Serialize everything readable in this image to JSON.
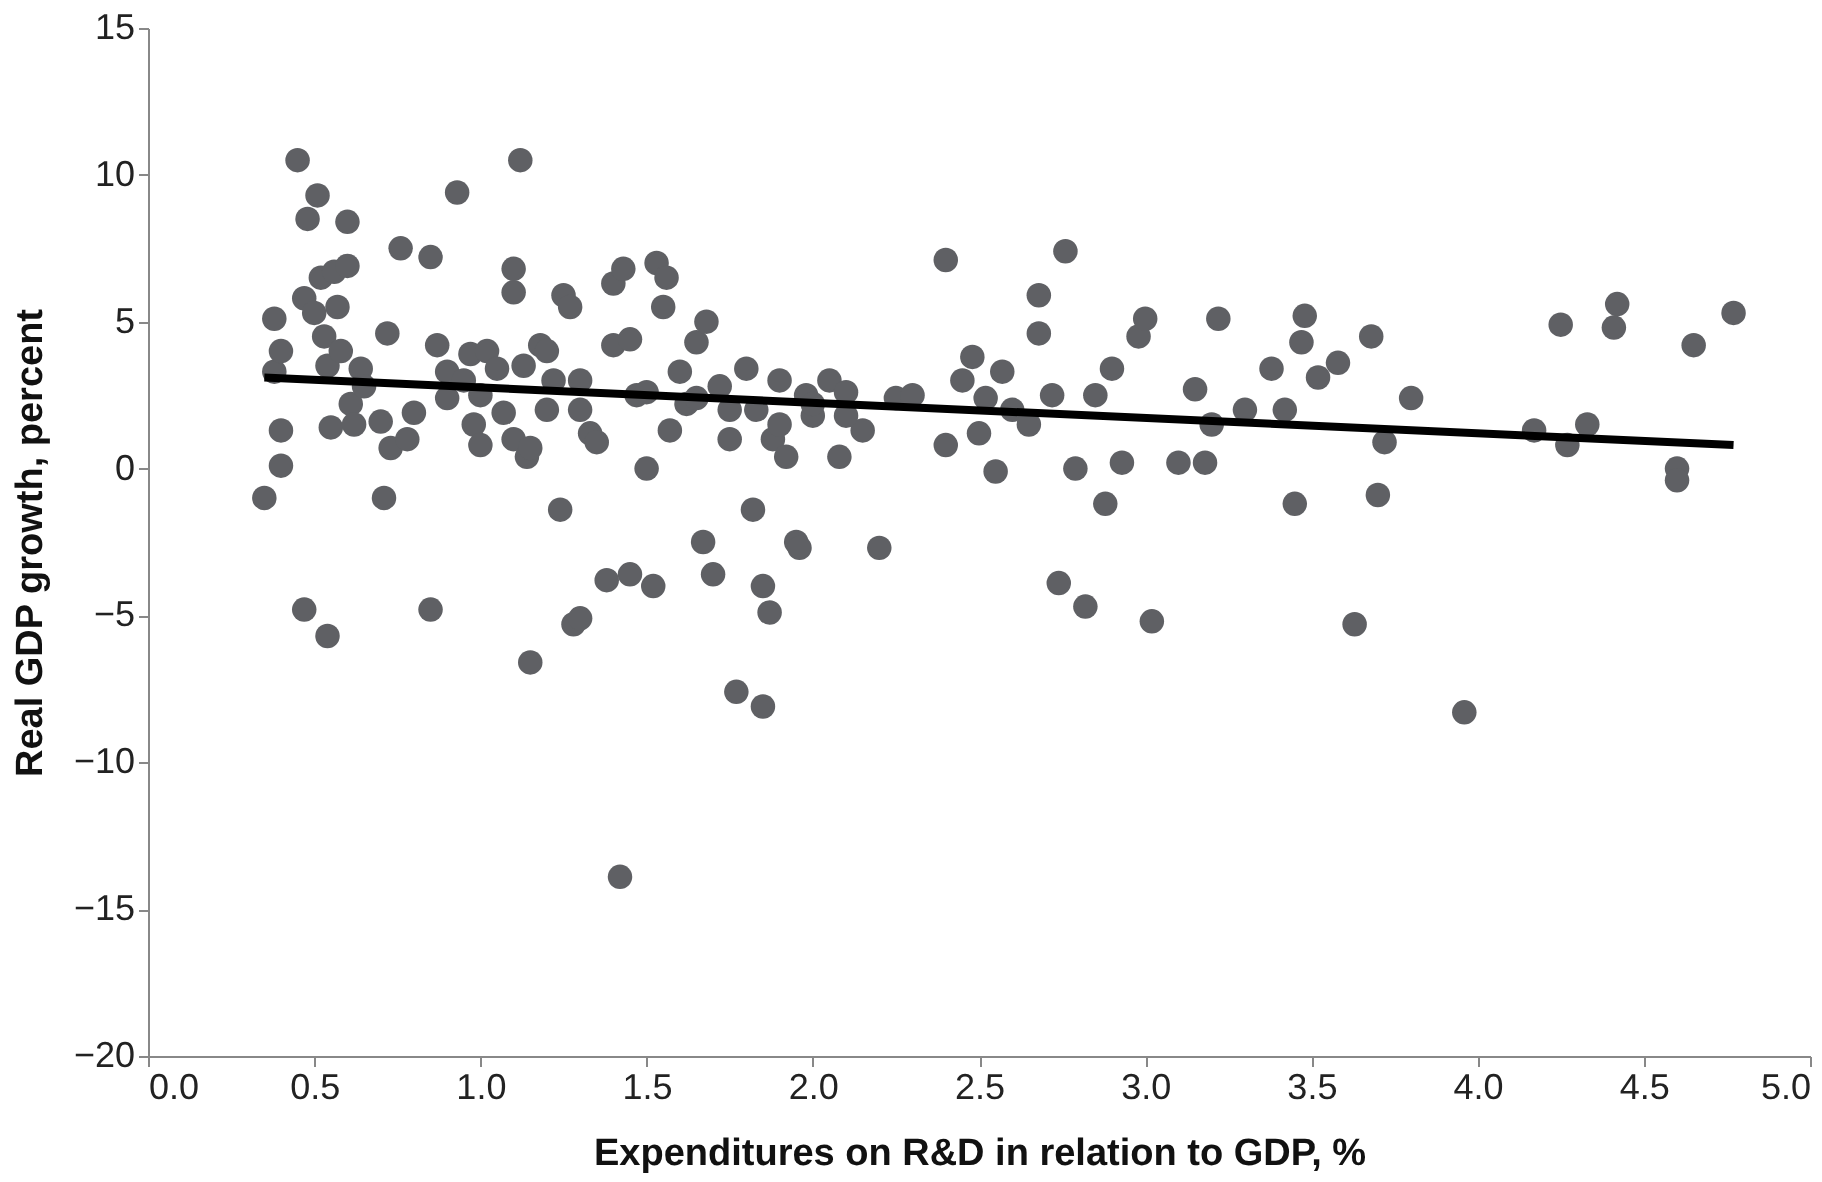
{
  "chart_data": {
    "type": "scatter",
    "xlabel": "Expenditures on R&D in relation to GDP, %",
    "ylabel": "Real GDP growth, percent",
    "xlim": [
      0,
      5
    ],
    "ylim": [
      -20,
      15
    ],
    "xticks": [
      {
        "value": 0,
        "label": "0.0"
      },
      {
        "value": 0.5,
        "label": "0.5"
      },
      {
        "value": 1,
        "label": "1.0"
      },
      {
        "value": 1.5,
        "label": "1.5"
      },
      {
        "value": 2,
        "label": "2.0"
      },
      {
        "value": 2.5,
        "label": "2.5"
      },
      {
        "value": 3,
        "label": "3.0"
      },
      {
        "value": 3.5,
        "label": "3.5"
      },
      {
        "value": 4,
        "label": "4.0"
      },
      {
        "value": 4.5,
        "label": "4.5"
      },
      {
        "value": 5,
        "label": "5.0"
      }
    ],
    "yticks": [
      -20,
      -15,
      -10,
      -5,
      0,
      5,
      10,
      15
    ],
    "grid": false,
    "series": [
      {
        "marker": "circle",
        "color": "#5f6064",
        "x": [
          0.35,
          0.38,
          0.38,
          0.4,
          0.4,
          0.4,
          0.45,
          0.47,
          0.47,
          0.48,
          0.5,
          0.51,
          0.52,
          0.53,
          0.54,
          0.54,
          0.55,
          0.56,
          0.57,
          0.58,
          0.6,
          0.6,
          0.61,
          0.62,
          0.64,
          0.7,
          0.71,
          0.72,
          0.73,
          0.76,
          0.78,
          0.8,
          0.85,
          0.85,
          0.87,
          0.9,
          0.93,
          0.95,
          0.97,
          0.98,
          1.0,
          1.02,
          1.05,
          1.07,
          1.1,
          1.1,
          1.1,
          1.12,
          1.13,
          1.14,
          1.15,
          1.15,
          1.18,
          1.2,
          1.2,
          1.22,
          1.24,
          1.25,
          1.27,
          1.28,
          1.3,
          1.3,
          1.33,
          1.35,
          1.38,
          1.4,
          1.4,
          1.42,
          1.43,
          1.45,
          1.45,
          1.47,
          1.5,
          1.52,
          1.53,
          1.55,
          1.56,
          1.57,
          1.6,
          1.62,
          1.65,
          1.67,
          1.68,
          1.7,
          1.72,
          1.75,
          1.77,
          1.8,
          1.82,
          1.83,
          1.85,
          1.85,
          1.87,
          1.88,
          1.9,
          1.92,
          1.95,
          1.96,
          1.98,
          2.0,
          2.05,
          2.08,
          2.1,
          2.15,
          2.2,
          2.25,
          2.4,
          2.4,
          2.45,
          2.48,
          2.5,
          2.52,
          2.55,
          2.57,
          2.6,
          2.65,
          2.68,
          2.68,
          2.72,
          2.74,
          2.76,
          2.79,
          2.82,
          2.85,
          2.88,
          2.9,
          2.93,
          2.98,
          3.0,
          3.02,
          3.1,
          3.15,
          3.18,
          3.2,
          3.22,
          3.3,
          3.38,
          3.42,
          3.45,
          3.47,
          3.48,
          3.52,
          3.58,
          3.63,
          3.68,
          3.7,
          3.72,
          3.8,
          3.96,
          4.17,
          4.25,
          4.27,
          4.33,
          4.42,
          4.41,
          4.6,
          4.6,
          4.65,
          4.77,
          1.0,
          1.3,
          1.5,
          1.65,
          1.75,
          1.9,
          2.0,
          2.1,
          2.3,
          0.65,
          0.9
        ],
        "values": [
          -1.0,
          5.1,
          3.3,
          1.3,
          0.1,
          4.0,
          10.5,
          5.8,
          -4.8,
          8.5,
          5.3,
          9.3,
          6.5,
          4.5,
          3.5,
          -5.7,
          1.4,
          6.7,
          5.5,
          4.0,
          8.4,
          6.9,
          2.2,
          1.5,
          3.4,
          1.6,
          -1.0,
          4.6,
          0.7,
          7.5,
          1.0,
          1.9,
          7.2,
          -4.8,
          4.2,
          3.3,
          9.4,
          3.0,
          3.9,
          1.5,
          0.8,
          4.0,
          3.4,
          1.9,
          6.8,
          6.0,
          1.0,
          10.5,
          3.5,
          0.4,
          0.7,
          -6.6,
          4.2,
          2.0,
          4.0,
          3.0,
          -1.4,
          5.9,
          5.5,
          -5.3,
          -5.1,
          3.0,
          1.2,
          0.9,
          -3.8,
          4.2,
          6.3,
          -13.9,
          6.8,
          -3.6,
          4.4,
          2.5,
          0.0,
          -4.0,
          7.0,
          5.5,
          6.5,
          1.3,
          3.3,
          2.2,
          4.3,
          -2.5,
          5.0,
          -3.6,
          2.8,
          1.0,
          -7.6,
          3.4,
          -1.4,
          2.0,
          -4.0,
          -8.1,
          -4.9,
          1.0,
          3.0,
          0.4,
          -2.5,
          -2.7,
          2.5,
          1.8,
          3.0,
          0.4,
          2.6,
          1.3,
          -2.7,
          2.4,
          7.1,
          0.8,
          3.0,
          3.8,
          1.2,
          2.4,
          -0.1,
          3.3,
          2.0,
          1.5,
          5.9,
          4.6,
          2.5,
          -3.9,
          7.4,
          0.0,
          -4.7,
          2.5,
          -1.2,
          3.4,
          0.2,
          4.5,
          5.1,
          -5.2,
          0.2,
          2.7,
          0.2,
          1.5,
          5.1,
          2.0,
          3.4,
          2.0,
          -1.2,
          4.3,
          5.2,
          3.1,
          3.6,
          -5.3,
          4.5,
          -0.9,
          0.9,
          2.4,
          -8.3,
          1.3,
          4.9,
          0.8,
          1.5,
          5.6,
          4.8,
          0.0,
          -0.4,
          4.2,
          5.3,
          2.5,
          2.0,
          2.6,
          2.4,
          2.0,
          1.5,
          2.2,
          1.8,
          2.5,
          2.8,
          2.4
        ]
      },
      {
        "type": "line",
        "marker": "none",
        "line_style": "solid",
        "color": "#000000",
        "x": [
          0.35,
          4.77
        ],
        "values": [
          3.1,
          0.8
        ]
      }
    ]
  }
}
